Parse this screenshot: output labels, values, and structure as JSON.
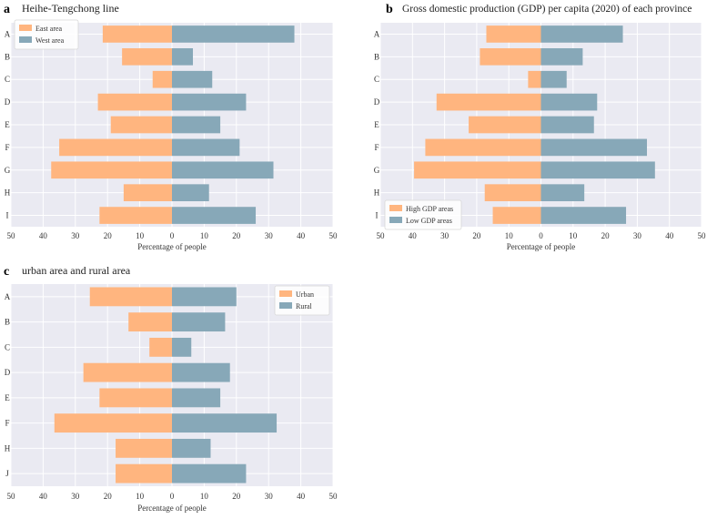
{
  "figure": {
    "bg_color": "#eaeaf2",
    "grid_color": "#ffffff",
    "text_color": "#333333",
    "panel_letter_color": "#000000"
  },
  "chart_data": [
    {
      "id": "a",
      "letter": "a",
      "type": "bar",
      "orientation": "horizontal-diverging",
      "title": "Heihe-Tengchong line",
      "xlabel": "Percentage of people",
      "xlim": [
        -50,
        50
      ],
      "xticks": [
        -50,
        -40,
        -30,
        -20,
        -10,
        0,
        10,
        20,
        30,
        40,
        50
      ],
      "xtick_labels": [
        "50",
        "40",
        "30",
        "20",
        "10",
        "0",
        "10",
        "20",
        "30",
        "40",
        "50"
      ],
      "categories": [
        "A",
        "B",
        "C",
        "D",
        "E",
        "F",
        "G",
        "H",
        "I"
      ],
      "legend_position": "top-left",
      "series": [
        {
          "name": "East area",
          "side": "left",
          "color": "#ffb57f",
          "values": [
            21.5,
            15.5,
            6,
            23,
            19,
            35,
            37.5,
            15,
            22.5
          ]
        },
        {
          "name": "West area",
          "side": "right",
          "color": "#87a8b8",
          "values": [
            38,
            6.5,
            12.5,
            23,
            15,
            21,
            31.5,
            11.5,
            26
          ]
        }
      ]
    },
    {
      "id": "b",
      "letter": "b",
      "type": "bar",
      "orientation": "horizontal-diverging",
      "title": "Gross domestic production (GDP) per capita (2020) of each province",
      "xlabel": "Percentage of people",
      "xlim": [
        -50,
        50
      ],
      "xticks": [
        -50,
        -40,
        -30,
        -20,
        -10,
        0,
        10,
        20,
        30,
        40,
        50
      ],
      "xtick_labels": [
        "50",
        "40",
        "30",
        "20",
        "10",
        "0",
        "10",
        "20",
        "30",
        "40",
        "50"
      ],
      "categories": [
        "A",
        "B",
        "C",
        "D",
        "E",
        "F",
        "G",
        "H",
        "I"
      ],
      "legend_position": "bottom-left",
      "series": [
        {
          "name": "High GDP areas",
          "side": "left",
          "color": "#ffb57f",
          "values": [
            17,
            19,
            4,
            32.5,
            22.5,
            36,
            39.5,
            17.5,
            15
          ]
        },
        {
          "name": "Low GDP areas",
          "side": "right",
          "color": "#87a8b8",
          "values": [
            25.5,
            13,
            8,
            17.5,
            16.5,
            33,
            35.5,
            13.5,
            26.5
          ]
        }
      ]
    },
    {
      "id": "c",
      "letter": "c",
      "type": "bar",
      "orientation": "horizontal-diverging",
      "title": "urban area and rural area",
      "xlabel": "Percentage of people",
      "xlim": [
        -50,
        50
      ],
      "xticks": [
        -50,
        -40,
        -30,
        -20,
        -10,
        0,
        10,
        20,
        30,
        40,
        50
      ],
      "xtick_labels": [
        "50",
        "40",
        "30",
        "20",
        "10",
        "0",
        "10",
        "20",
        "30",
        "40",
        "50"
      ],
      "categories": [
        "A",
        "B",
        "C",
        "D",
        "E",
        "F",
        "H",
        "J"
      ],
      "legend_position": "top-right",
      "series": [
        {
          "name": "Urban",
          "side": "left",
          "color": "#ffb57f",
          "values": [
            25.5,
            13.5,
            7,
            27.5,
            22.5,
            36.5,
            17.5,
            17.5
          ]
        },
        {
          "name": "Rural",
          "side": "right",
          "color": "#87a8b8",
          "values": [
            20,
            16.5,
            6,
            18,
            15,
            32.5,
            12,
            23
          ]
        }
      ]
    }
  ]
}
